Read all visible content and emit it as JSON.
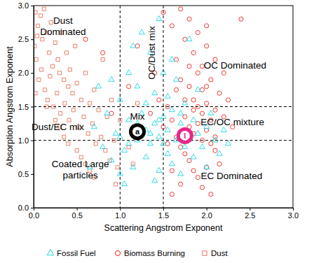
{
  "chart_data": {
    "type": "scatter",
    "x_label": "Scattering Angstrom Exponent",
    "y_label": "Absorption Angstrom Exponent",
    "xlim": [
      0,
      3
    ],
    "ylim": [
      0,
      3
    ],
    "xticks": [
      {
        "value": 0,
        "label": "0.0"
      },
      {
        "value": 0.5,
        "label": "0.5"
      },
      {
        "value": 1,
        "label": "1.0"
      },
      {
        "value": 1.5,
        "label": "1.5"
      },
      {
        "value": 2,
        "label": "2.0"
      },
      {
        "value": 2.5,
        "label": "2.5"
      },
      {
        "value": 3,
        "label": "3.0"
      }
    ],
    "yticks": [
      {
        "value": 0,
        "label": "0.0"
      },
      {
        "value": 0.5,
        "label": "0.5"
      },
      {
        "value": 1,
        "label": "1.0"
      },
      {
        "value": 1.5,
        "label": "1.5"
      },
      {
        "value": 2,
        "label": "2.0"
      },
      {
        "value": 2.5,
        "label": "2.5"
      },
      {
        "value": 3,
        "label": "3.0"
      }
    ],
    "legend": "bottom",
    "series": [
      {
        "name": "Fossil Fuel",
        "color": "#1ad8e6",
        "marker": "triangle",
        "x": [
          0.7,
          0.8,
          0.85,
          0.9,
          0.95,
          1.0,
          1.0,
          1.05,
          1.1,
          1.1,
          1.15,
          1.2,
          1.2,
          1.25,
          1.3,
          1.3,
          1.35,
          1.35,
          1.4,
          1.4,
          1.45,
          1.45,
          1.5,
          1.5,
          1.55,
          1.55,
          1.6,
          1.6,
          1.65,
          1.65,
          1.7,
          1.7,
          1.75,
          1.75,
          1.8,
          1.8,
          1.85,
          1.85,
          1.9,
          1.9,
          1.95,
          2.0,
          2.0,
          2.05,
          2.1,
          2.15,
          2.2,
          2.25,
          1.25,
          1.45,
          1.15,
          0.75,
          0.65,
          1.05,
          1.4,
          1.6,
          1.3,
          1.5,
          1.2,
          1.0,
          0.9,
          1.55,
          1.7,
          1.35,
          1.45,
          1.1
        ],
        "y": [
          1.2,
          0.9,
          1.4,
          0.7,
          1.1,
          0.5,
          1.6,
          0.85,
          1.3,
          2.0,
          0.6,
          1.0,
          1.8,
          1.4,
          0.75,
          1.15,
          2.3,
          0.95,
          1.25,
          1.7,
          0.55,
          1.05,
          1.35,
          2.0,
          0.8,
          1.15,
          1.45,
          0.65,
          1.0,
          1.9,
          1.25,
          0.5,
          1.55,
          0.9,
          1.05,
          2.5,
          1.3,
          0.75,
          1.1,
          1.75,
          0.9,
          1.2,
          0.6,
          1.4,
          1.0,
          0.8,
          1.15,
          0.95,
          2.6,
          2.8,
          2.4,
          1.8,
          0.6,
          0.35,
          0.4,
          2.2,
          1.55,
          0.95,
          1.25,
          1.05,
          1.9,
          1.65,
          1.4,
          1.1,
          1.3,
          0.95
        ]
      },
      {
        "name": "Biomass Burning",
        "color": "#e8261f",
        "marker": "circle",
        "x": [
          1.5,
          1.6,
          1.7,
          1.75,
          1.8,
          1.85,
          1.9,
          1.95,
          2.0,
          2.05,
          2.1,
          2.15,
          2.2,
          1.65,
          1.7,
          1.8,
          1.85,
          1.9,
          1.95,
          2.0,
          2.05,
          2.1,
          1.75,
          1.8,
          1.85,
          1.9,
          1.95,
          2.0,
          2.05,
          2.1,
          1.6,
          1.65,
          1.7,
          1.75,
          1.8,
          1.85,
          1.9,
          1.95,
          2.0,
          2.05,
          1.55,
          1.5,
          1.45,
          1.4,
          1.35,
          2.25,
          2.3,
          2.15,
          1.7,
          1.6,
          1.9,
          2.0,
          1.85,
          1.95,
          1.55,
          0.6,
          0.8,
          0.9,
          1.2,
          1.1,
          2.2,
          2.1,
          1.75,
          1.65,
          2.0,
          1.8,
          1.6,
          2.4
        ],
        "y": [
          2.9,
          2.7,
          2.95,
          2.5,
          2.8,
          2.3,
          2.6,
          2.1,
          2.4,
          1.9,
          2.2,
          1.7,
          2.0,
          2.2,
          1.9,
          1.8,
          1.6,
          1.5,
          1.4,
          1.55,
          1.3,
          1.45,
          1.35,
          1.2,
          1.1,
          1.25,
          1.0,
          1.15,
          0.95,
          0.85,
          1.3,
          1.05,
          0.9,
          0.8,
          0.7,
          0.55,
          0.45,
          0.3,
          0.6,
          0.2,
          0.95,
          1.2,
          1.6,
          2.0,
          1.4,
          1.6,
          1.2,
          0.65,
          0.35,
          0.55,
          2.0,
          1.8,
          1.45,
          1.75,
          1.5,
          2.5,
          2.3,
          1.4,
          2.4,
          1.8,
          1.35,
          1.05,
          1.6,
          1.75,
          2.7,
          2.1,
          0.2,
          2.8
        ]
      },
      {
        "name": "Dust",
        "color": "#e8735a",
        "marker": "square",
        "x": [
          0.02,
          0.05,
          0.08,
          0.1,
          0.12,
          0.15,
          0.18,
          0.2,
          0.22,
          0.25,
          0.28,
          0.3,
          0.32,
          0.35,
          0.38,
          0.4,
          0.42,
          0.45,
          0.48,
          0.5,
          0.55,
          0.6,
          0.65,
          0.7,
          0.75,
          0.8,
          0.85,
          0.9,
          0.03,
          0.06,
          0.09,
          0.13,
          0.16,
          0.19,
          0.23,
          0.27,
          0.31,
          0.36,
          0.41,
          0.46,
          0.52,
          0.58,
          0.63,
          0.68,
          0.72,
          0.78,
          0.83,
          0.88,
          0.93,
          0.97,
          0.35,
          0.4,
          0.5,
          0.55,
          0.6,
          0.65,
          0.7,
          0.3,
          0.25,
          0.15,
          0.02,
          0.01,
          0.04,
          1.0,
          1.1,
          1.15,
          1.2,
          0.95
        ],
        "y": [
          2.9,
          2.7,
          2.85,
          2.5,
          2.95,
          2.6,
          2.3,
          2.75,
          2.1,
          2.45,
          2.2,
          2.0,
          2.6,
          1.9,
          2.3,
          1.8,
          2.05,
          1.7,
          2.4,
          1.85,
          1.6,
          2.0,
          1.55,
          1.75,
          1.45,
          2.2,
          1.35,
          1.6,
          2.2,
          1.9,
          2.05,
          1.75,
          1.6,
          1.95,
          1.5,
          1.7,
          1.4,
          1.55,
          1.3,
          1.45,
          1.2,
          1.35,
          1.1,
          1.25,
          0.95,
          1.05,
          0.85,
          0.7,
          1.0,
          0.6,
          1.05,
          0.95,
          0.85,
          0.75,
          0.65,
          0.55,
          0.45,
          1.2,
          1.3,
          1.5,
          1.7,
          2.4,
          2.55,
          1.3,
          0.9,
          0.65,
          1.55,
          0.35
        ]
      }
    ],
    "reference_lines": [
      {
        "axis": "x",
        "value": 1
      },
      {
        "axis": "x",
        "value": 1.5
      },
      {
        "axis": "y",
        "value": 1
      },
      {
        "axis": "y",
        "value": 1.5
      }
    ],
    "annotations": [
      {
        "lines": [
          "Dust",
          "Dominated"
        ],
        "x": 0.34,
        "y": 2.69
      },
      {
        "lines": [
          "OC Dominated"
        ],
        "x": 2.33,
        "y": 2.11
      },
      {
        "lines": [
          "Dust/EC mix"
        ],
        "x": 0.28,
        "y": 1.2
      },
      {
        "lines": [
          "Mix"
        ],
        "x": 1.2,
        "y": 1.35
      },
      {
        "lines": [
          "EC/OC mixture"
        ],
        "x": 2.3,
        "y": 1.27
      },
      {
        "lines": [
          "Coated Large",
          "particles"
        ],
        "x": 0.54,
        "y": 0.57
      },
      {
        "lines": [
          "EC Dominated"
        ],
        "x": 2.29,
        "y": 0.47
      }
    ],
    "vertical_annotations": [
      {
        "text": "OC/Dust mix",
        "x": 1.37,
        "y": 2.3
      }
    ],
    "highlights": [
      {
        "label": "a",
        "x": 1.2,
        "y": 1.13,
        "color": "#000000"
      },
      {
        "label": "I",
        "x": 1.75,
        "y": 1.07,
        "color": "#e8268c"
      }
    ]
  }
}
